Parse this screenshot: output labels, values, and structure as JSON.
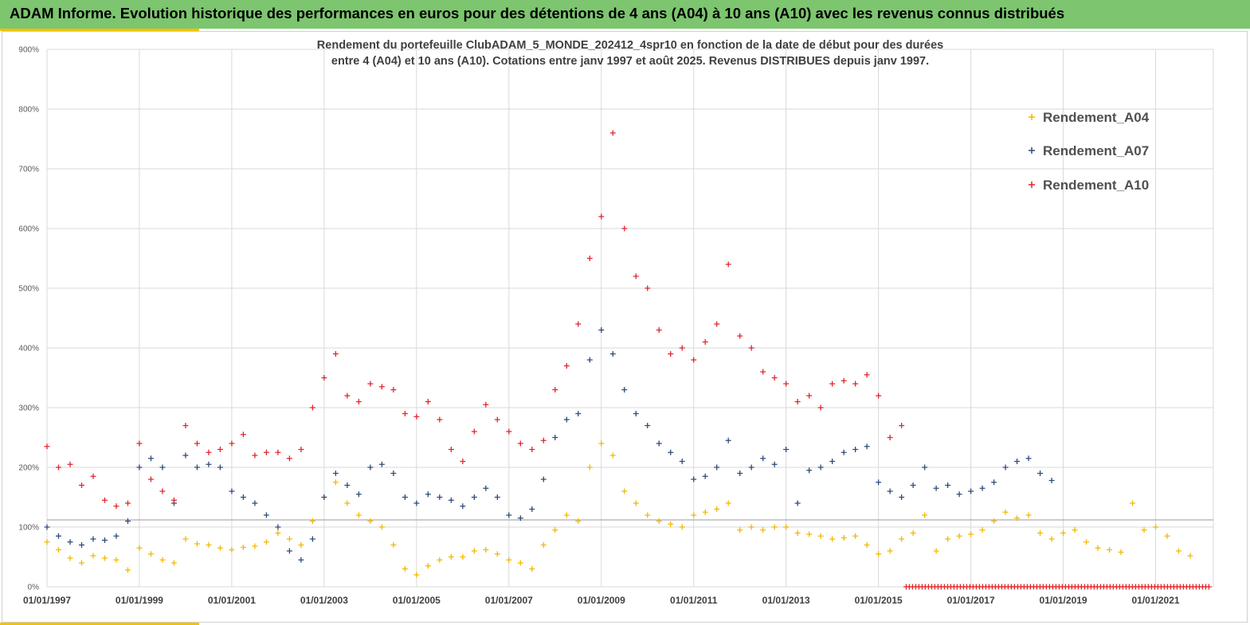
{
  "header": {
    "title": "ADAM Informe. Evolution historique des performances en euros pour des détentions de 4 ans (A04) à 10 ans (A10) avec les revenus connus distribués"
  },
  "chart_data": {
    "type": "scatter",
    "title_lines": [
      "Rendement du portefeuille ClubADAM_5_MONDE_202412_4spr10  en fonction de la date de début pour des durées",
      "entre 4 (A04) et 10 ans (A10). Cotations entre janv 1997 et août 2025. Revenus DISTRIBUES depuis janv 1997."
    ],
    "xlim": [
      1997.0,
      2022.25
    ],
    "ylim": [
      0,
      900
    ],
    "y_ticks": [
      "0%",
      "100%",
      "200%",
      "300%",
      "400%",
      "500%",
      "600%",
      "700%",
      "800%",
      "900%"
    ],
    "x_ticks": [
      {
        "label": "01/01/1997",
        "x": 1997.0
      },
      {
        "label": "01/01/1999",
        "x": 1999.0
      },
      {
        "label": "01/01/2001",
        "x": 2001.0
      },
      {
        "label": "01/01/2003",
        "x": 2003.0
      },
      {
        "label": "01/01/2005",
        "x": 2005.0
      },
      {
        "label": "01/01/2007",
        "x": 2007.0
      },
      {
        "label": "01/01/2009",
        "x": 2009.0
      },
      {
        "label": "01/01/2011",
        "x": 2011.0
      },
      {
        "label": "01/01/2013",
        "x": 2013.0
      },
      {
        "label": "01/01/2015",
        "x": 2015.0
      },
      {
        "label": "01/01/2017",
        "x": 2017.0
      },
      {
        "label": "01/01/2019",
        "x": 2019.0
      },
      {
        "label": "01/01/2021",
        "x": 2021.0
      }
    ],
    "reference_line_y": 112,
    "grid": true,
    "legend_position": "top-right",
    "marker": "+",
    "series": [
      {
        "name": "Rendement_A04",
        "color": "#f2b800",
        "points": [
          [
            1997.0,
            75
          ],
          [
            1997.25,
            62
          ],
          [
            1997.5,
            48
          ],
          [
            1997.75,
            40
          ],
          [
            1998.0,
            52
          ],
          [
            1998.25,
            48
          ],
          [
            1998.5,
            45
          ],
          [
            1998.75,
            28
          ],
          [
            1999.0,
            65
          ],
          [
            1999.25,
            55
          ],
          [
            1999.5,
            45
          ],
          [
            1999.75,
            40
          ],
          [
            2000.0,
            80
          ],
          [
            2000.25,
            72
          ],
          [
            2000.5,
            70
          ],
          [
            2000.75,
            65
          ],
          [
            2001.0,
            62
          ],
          [
            2001.25,
            66
          ],
          [
            2001.5,
            68
          ],
          [
            2001.75,
            75
          ],
          [
            2002.0,
            90
          ],
          [
            2002.25,
            80
          ],
          [
            2002.5,
            70
          ],
          [
            2002.75,
            110
          ],
          [
            2003.0,
            150
          ],
          [
            2003.25,
            175
          ],
          [
            2003.5,
            140
          ],
          [
            2003.75,
            120
          ],
          [
            2004.0,
            110
          ],
          [
            2004.25,
            100
          ],
          [
            2004.5,
            70
          ],
          [
            2004.75,
            30
          ],
          [
            2005.0,
            20
          ],
          [
            2005.25,
            35
          ],
          [
            2005.5,
            45
          ],
          [
            2005.75,
            50
          ],
          [
            2006.0,
            50
          ],
          [
            2006.25,
            60
          ],
          [
            2006.5,
            62
          ],
          [
            2006.75,
            55
          ],
          [
            2007.0,
            45
          ],
          [
            2007.25,
            40
          ],
          [
            2007.5,
            30
          ],
          [
            2007.75,
            70
          ],
          [
            2008.0,
            95
          ],
          [
            2008.25,
            120
          ],
          [
            2008.5,
            110
          ],
          [
            2008.75,
            200
          ],
          [
            2009.0,
            240
          ],
          [
            2009.25,
            220
          ],
          [
            2009.5,
            160
          ],
          [
            2009.75,
            140
          ],
          [
            2010.0,
            120
          ],
          [
            2010.25,
            110
          ],
          [
            2010.5,
            105
          ],
          [
            2010.75,
            100
          ],
          [
            2011.0,
            120
          ],
          [
            2011.25,
            125
          ],
          [
            2011.5,
            130
          ],
          [
            2011.75,
            140
          ],
          [
            2012.0,
            95
          ],
          [
            2012.25,
            100
          ],
          [
            2012.5,
            95
          ],
          [
            2012.75,
            100
          ],
          [
            2013.0,
            100
          ],
          [
            2013.25,
            90
          ],
          [
            2013.5,
            88
          ],
          [
            2013.75,
            85
          ],
          [
            2014.0,
            80
          ],
          [
            2014.25,
            82
          ],
          [
            2014.5,
            85
          ],
          [
            2014.75,
            70
          ],
          [
            2015.0,
            55
          ],
          [
            2015.25,
            60
          ],
          [
            2015.5,
            80
          ],
          [
            2015.75,
            90
          ],
          [
            2016.0,
            120
          ],
          [
            2016.25,
            60
          ],
          [
            2016.5,
            80
          ],
          [
            2016.75,
            85
          ],
          [
            2017.0,
            88
          ],
          [
            2017.25,
            95
          ],
          [
            2017.5,
            110
          ],
          [
            2017.75,
            125
          ],
          [
            2018.0,
            115
          ],
          [
            2018.25,
            120
          ],
          [
            2018.5,
            90
          ],
          [
            2018.75,
            80
          ],
          [
            2019.0,
            90
          ],
          [
            2019.25,
            95
          ],
          [
            2019.5,
            75
          ],
          [
            2019.75,
            65
          ],
          [
            2020.0,
            62
          ],
          [
            2020.25,
            58
          ],
          [
            2020.5,
            140
          ],
          [
            2020.75,
            95
          ],
          [
            2021.0,
            100
          ],
          [
            2021.25,
            85
          ],
          [
            2021.5,
            60
          ],
          [
            2021.75,
            52
          ]
        ]
      },
      {
        "name": "Rendement_A07",
        "color": "#2f4a7a",
        "points": [
          [
            1997.0,
            100
          ],
          [
            1997.25,
            85
          ],
          [
            1997.5,
            75
          ],
          [
            1997.75,
            70
          ],
          [
            1998.0,
            80
          ],
          [
            1998.25,
            78
          ],
          [
            1998.5,
            85
          ],
          [
            1998.75,
            110
          ],
          [
            1999.0,
            200
          ],
          [
            1999.25,
            215
          ],
          [
            1999.5,
            200
          ],
          [
            1999.75,
            140
          ],
          [
            2000.0,
            220
          ],
          [
            2000.25,
            200
          ],
          [
            2000.5,
            205
          ],
          [
            2000.75,
            200
          ],
          [
            2001.0,
            160
          ],
          [
            2001.25,
            150
          ],
          [
            2001.5,
            140
          ],
          [
            2001.75,
            120
          ],
          [
            2002.0,
            100
          ],
          [
            2002.25,
            60
          ],
          [
            2002.5,
            45
          ],
          [
            2002.75,
            80
          ],
          [
            2003.0,
            150
          ],
          [
            2003.25,
            190
          ],
          [
            2003.5,
            170
          ],
          [
            2003.75,
            155
          ],
          [
            2004.0,
            200
          ],
          [
            2004.25,
            205
          ],
          [
            2004.5,
            190
          ],
          [
            2004.75,
            150
          ],
          [
            2005.0,
            140
          ],
          [
            2005.25,
            155
          ],
          [
            2005.5,
            150
          ],
          [
            2005.75,
            145
          ],
          [
            2006.0,
            135
          ],
          [
            2006.25,
            150
          ],
          [
            2006.5,
            165
          ],
          [
            2006.75,
            150
          ],
          [
            2007.0,
            120
          ],
          [
            2007.25,
            115
          ],
          [
            2007.5,
            130
          ],
          [
            2007.75,
            180
          ],
          [
            2008.0,
            250
          ],
          [
            2008.25,
            280
          ],
          [
            2008.5,
            290
          ],
          [
            2008.75,
            380
          ],
          [
            2009.0,
            430
          ],
          [
            2009.25,
            390
          ],
          [
            2009.5,
            330
          ],
          [
            2009.75,
            290
          ],
          [
            2010.0,
            270
          ],
          [
            2010.25,
            240
          ],
          [
            2010.5,
            225
          ],
          [
            2010.75,
            210
          ],
          [
            2011.0,
            180
          ],
          [
            2011.25,
            185
          ],
          [
            2011.5,
            200
          ],
          [
            2011.75,
            245
          ],
          [
            2012.0,
            190
          ],
          [
            2012.25,
            200
          ],
          [
            2012.5,
            215
          ],
          [
            2012.75,
            205
          ],
          [
            2013.0,
            230
          ],
          [
            2013.25,
            140
          ],
          [
            2013.5,
            195
          ],
          [
            2013.75,
            200
          ],
          [
            2014.0,
            210
          ],
          [
            2014.25,
            225
          ],
          [
            2014.5,
            230
          ],
          [
            2014.75,
            235
          ],
          [
            2015.0,
            175
          ],
          [
            2015.25,
            160
          ],
          [
            2015.5,
            150
          ],
          [
            2015.75,
            170
          ],
          [
            2016.0,
            200
          ],
          [
            2016.25,
            165
          ],
          [
            2016.5,
            170
          ],
          [
            2016.75,
            155
          ],
          [
            2017.0,
            160
          ],
          [
            2017.25,
            165
          ],
          [
            2017.5,
            175
          ],
          [
            2017.75,
            200
          ],
          [
            2018.0,
            210
          ],
          [
            2018.25,
            215
          ],
          [
            2018.5,
            190
          ],
          [
            2018.75,
            178
          ]
        ]
      },
      {
        "name": "Rendement_A10",
        "color": "#e3242b",
        "points": [
          [
            1997.0,
            235
          ],
          [
            1997.25,
            200
          ],
          [
            1997.5,
            205
          ],
          [
            1997.75,
            170
          ],
          [
            1998.0,
            185
          ],
          [
            1998.25,
            145
          ],
          [
            1998.5,
            135
          ],
          [
            1998.75,
            140
          ],
          [
            1999.0,
            240
          ],
          [
            1999.25,
            180
          ],
          [
            1999.5,
            160
          ],
          [
            1999.75,
            145
          ],
          [
            2000.0,
            270
          ],
          [
            2000.25,
            240
          ],
          [
            2000.5,
            225
          ],
          [
            2000.75,
            230
          ],
          [
            2001.0,
            240
          ],
          [
            2001.25,
            255
          ],
          [
            2001.5,
            220
          ],
          [
            2001.75,
            225
          ],
          [
            2002.0,
            225
          ],
          [
            2002.25,
            215
          ],
          [
            2002.5,
            230
          ],
          [
            2002.75,
            300
          ],
          [
            2003.0,
            350
          ],
          [
            2003.25,
            390
          ],
          [
            2003.5,
            320
          ],
          [
            2003.75,
            310
          ],
          [
            2004.0,
            340
          ],
          [
            2004.25,
            335
          ],
          [
            2004.5,
            330
          ],
          [
            2004.75,
            290
          ],
          [
            2005.0,
            285
          ],
          [
            2005.25,
            310
          ],
          [
            2005.5,
            280
          ],
          [
            2005.75,
            230
          ],
          [
            2006.0,
            210
          ],
          [
            2006.25,
            260
          ],
          [
            2006.5,
            305
          ],
          [
            2006.75,
            280
          ],
          [
            2007.0,
            260
          ],
          [
            2007.25,
            240
          ],
          [
            2007.5,
            230
          ],
          [
            2007.75,
            245
          ],
          [
            2008.0,
            330
          ],
          [
            2008.25,
            370
          ],
          [
            2008.5,
            440
          ],
          [
            2008.75,
            550
          ],
          [
            2009.0,
            620
          ],
          [
            2009.25,
            760
          ],
          [
            2009.5,
            600
          ],
          [
            2009.75,
            520
          ],
          [
            2010.0,
            500
          ],
          [
            2010.25,
            430
          ],
          [
            2010.5,
            390
          ],
          [
            2010.75,
            400
          ],
          [
            2011.0,
            380
          ],
          [
            2011.25,
            410
          ],
          [
            2011.5,
            440
          ],
          [
            2011.75,
            540
          ],
          [
            2012.0,
            420
          ],
          [
            2012.25,
            400
          ],
          [
            2012.5,
            360
          ],
          [
            2012.75,
            350
          ],
          [
            2013.0,
            340
          ],
          [
            2013.25,
            310
          ],
          [
            2013.5,
            320
          ],
          [
            2013.75,
            300
          ],
          [
            2014.0,
            340
          ],
          [
            2014.25,
            345
          ],
          [
            2014.5,
            340
          ],
          [
            2014.75,
            355
          ],
          [
            2015.0,
            320
          ],
          [
            2015.25,
            250
          ],
          [
            2015.5,
            270
          ]
        ]
      }
    ],
    "zero_run": {
      "series": "Rendement_A10",
      "color": "#e3242b",
      "x_from": 2015.6,
      "x_to": 2022.2,
      "y": 0
    }
  }
}
